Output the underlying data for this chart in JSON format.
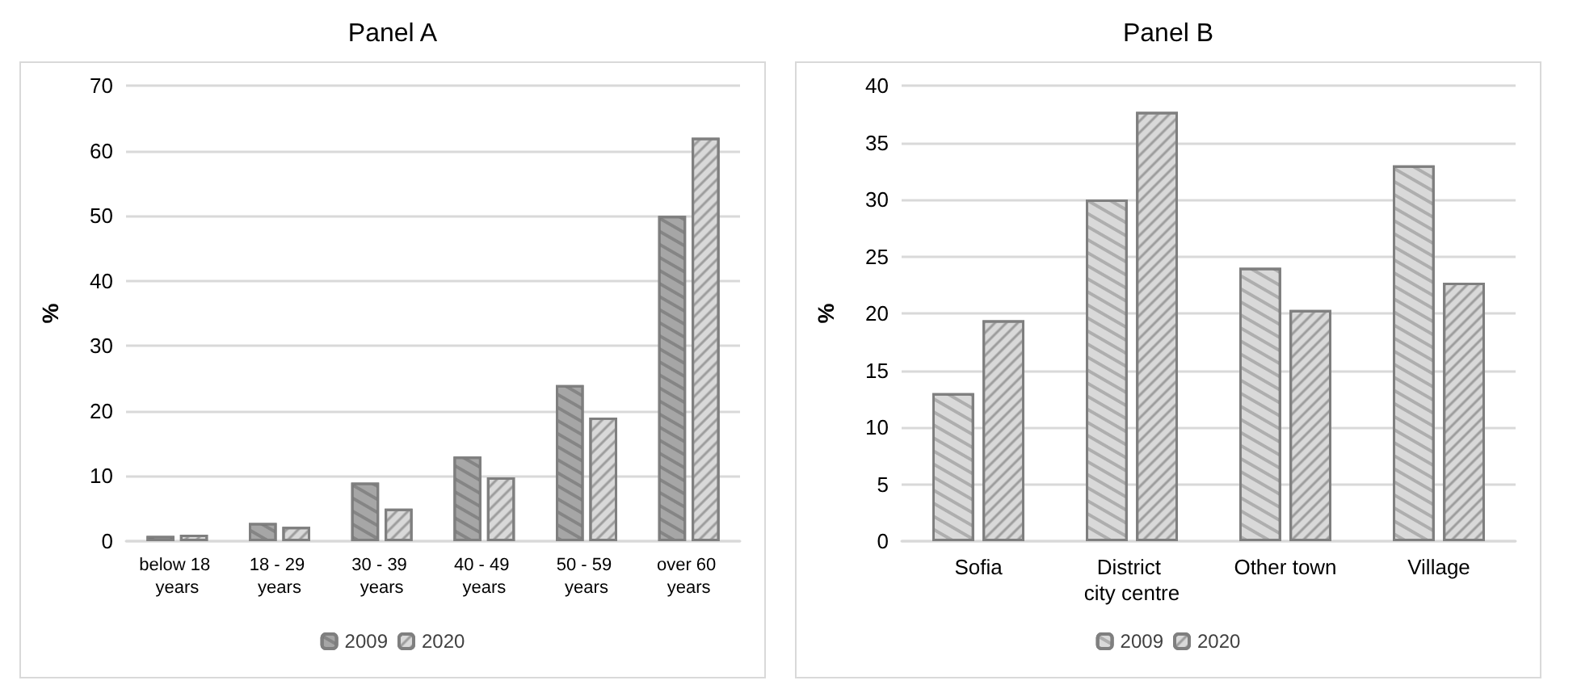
{
  "chart_data": [
    {
      "type": "bar",
      "title": "Panel A",
      "ylabel": "%",
      "categories": [
        "below 18 years",
        "18 - 29 years",
        "30 - 39 years",
        "40 - 49 years",
        "50 - 59 years",
        "over 60 years"
      ],
      "series": [
        {
          "name": "2009",
          "color": "#a6a6a6",
          "values": [
            0.8,
            2.8,
            9,
            13,
            24,
            50
          ]
        },
        {
          "name": "2020",
          "color": "#d9d9d9",
          "values": [
            1,
            2.2,
            5,
            9.8,
            19,
            62
          ]
        }
      ],
      "ylim": [
        0,
        70
      ],
      "yticks": [
        0,
        10,
        20,
        30,
        40,
        50,
        60,
        70
      ],
      "grid": "y",
      "legend": "bottom"
    },
    {
      "type": "bar",
      "title": "Panel B",
      "ylabel": "%",
      "categories": [
        "Sofia",
        "District city centre",
        "Other town",
        "Village"
      ],
      "series": [
        {
          "name": "2009",
          "color": "#d9d9d9",
          "values": [
            13,
            30,
            24,
            33
          ]
        },
        {
          "name": "2020",
          "color": "#d9d9d9",
          "values": [
            19.4,
            37.7,
            20.3,
            22.7
          ]
        }
      ],
      "ylim": [
        0,
        40
      ],
      "yticks": [
        0,
        5,
        10,
        15,
        20,
        25,
        30,
        35,
        40
      ],
      "grid": "y",
      "legend": "bottom"
    }
  ]
}
